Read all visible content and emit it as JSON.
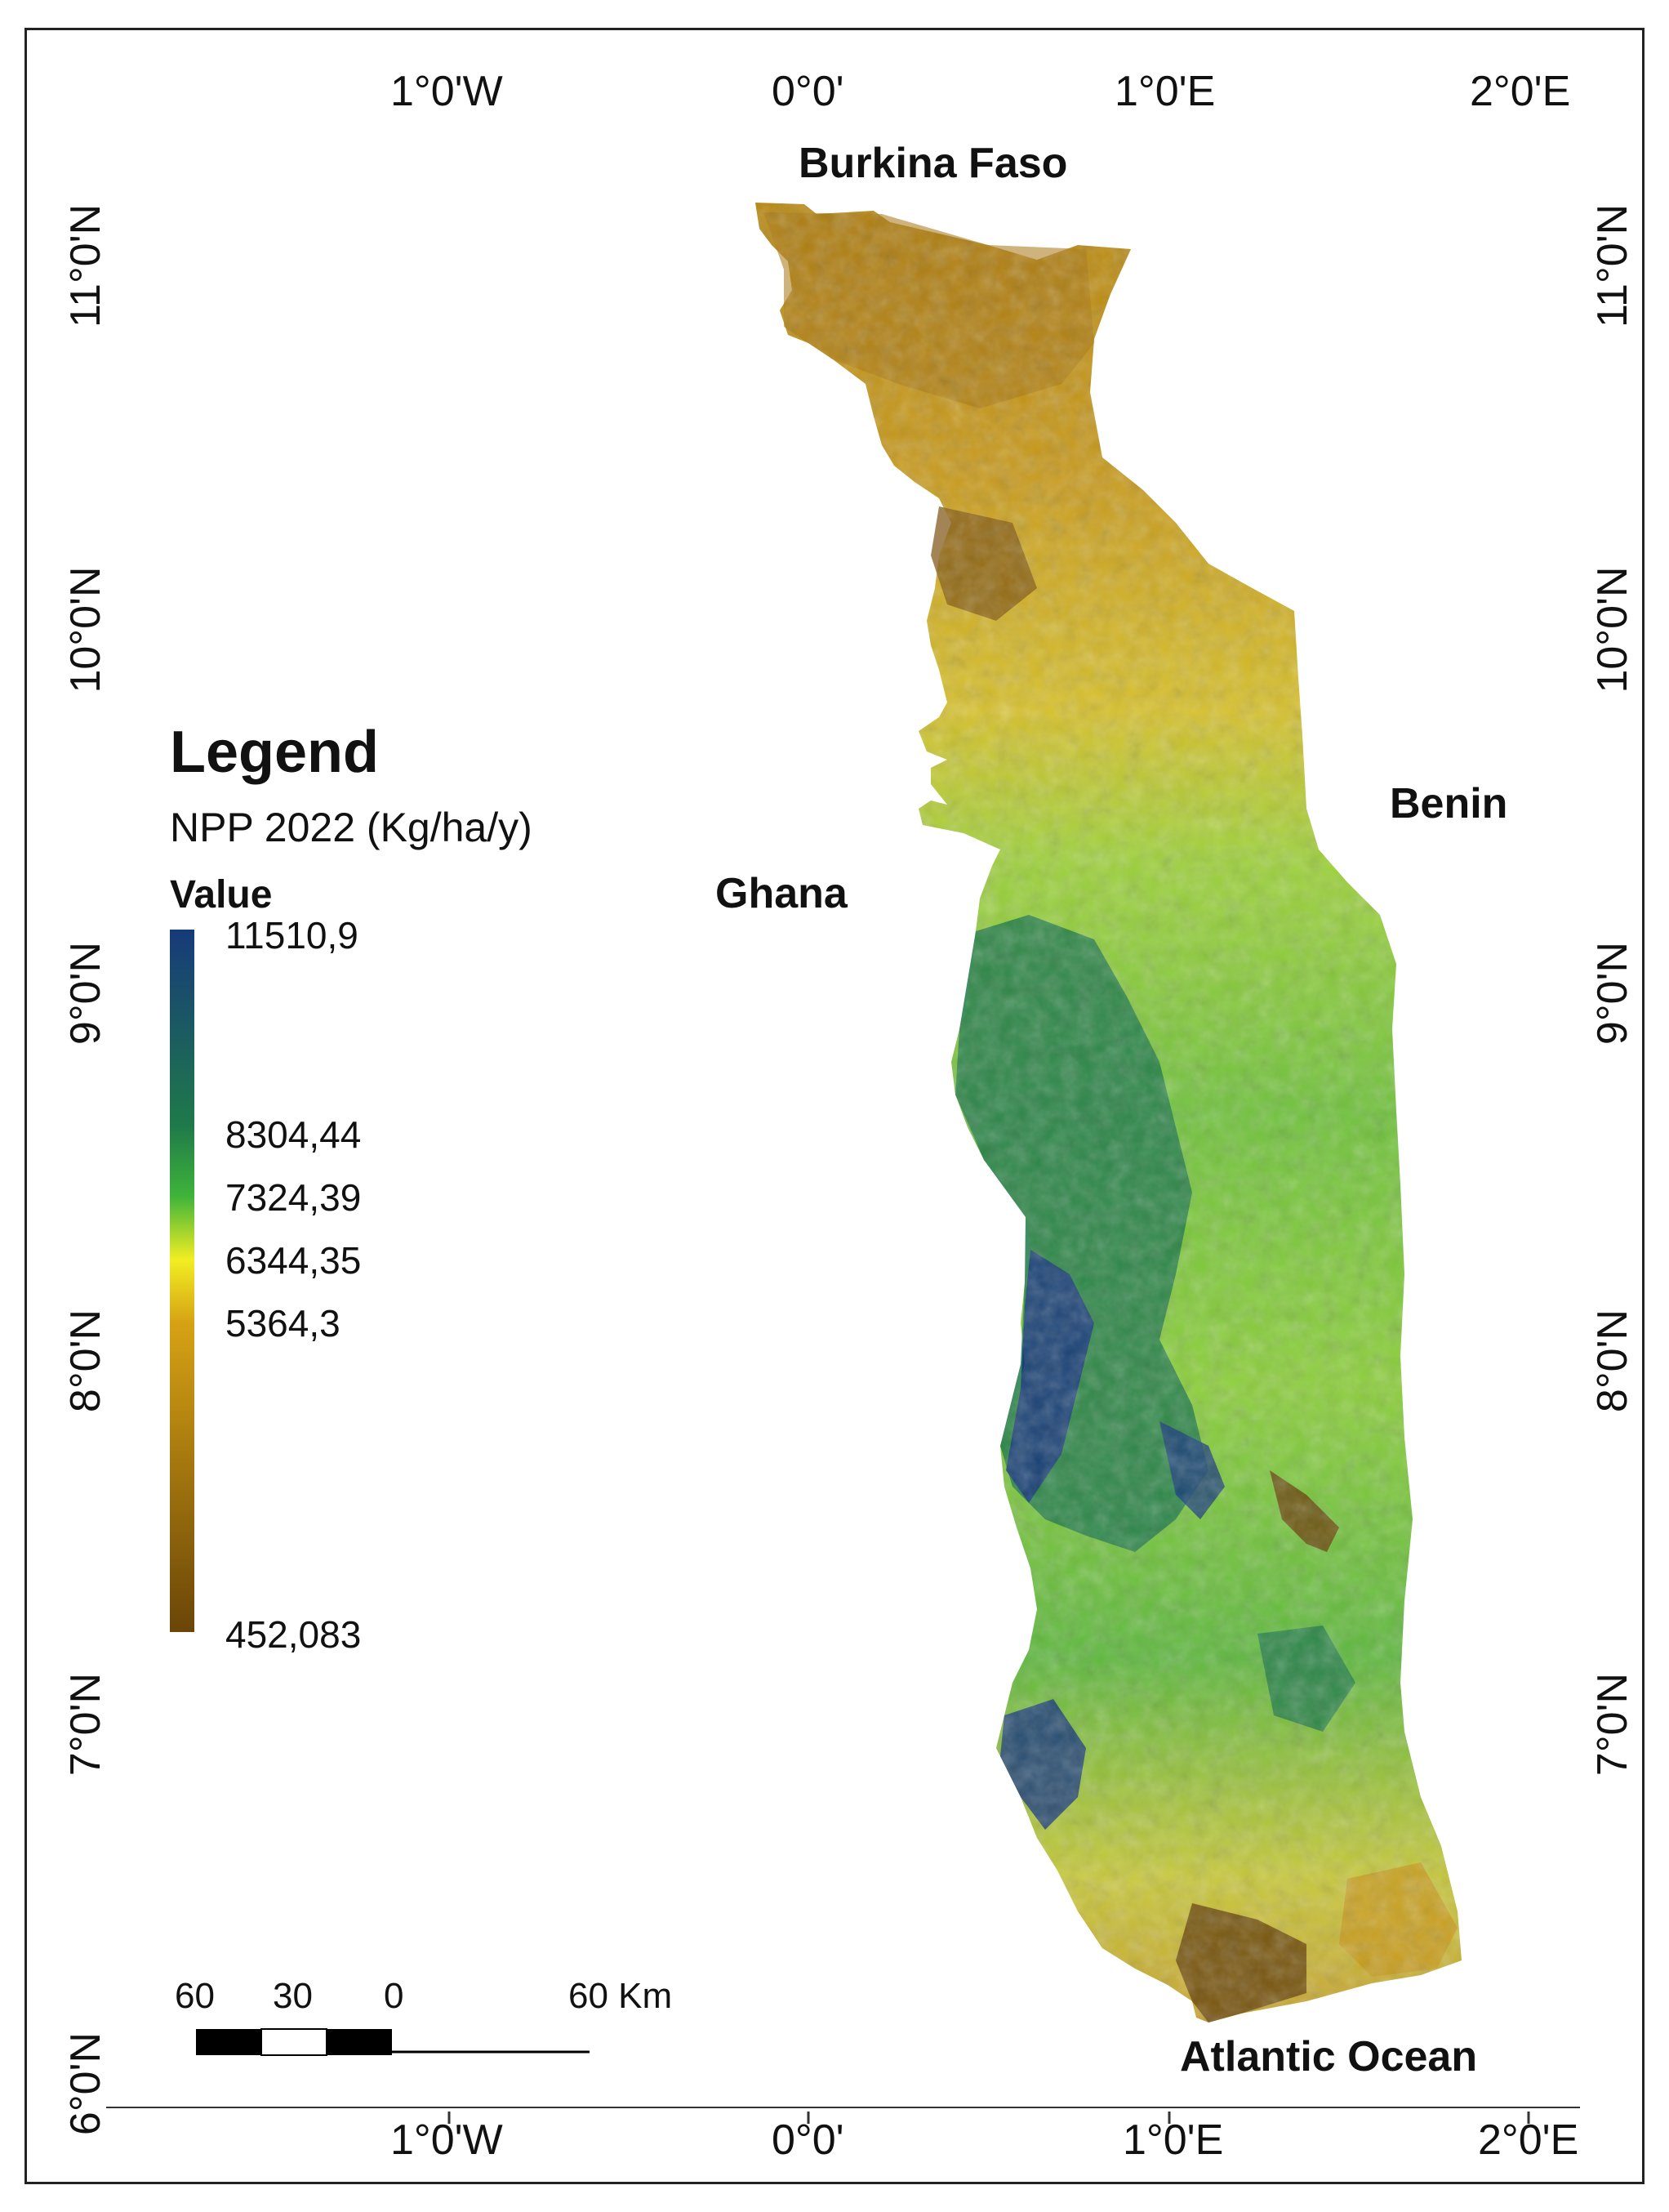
{
  "graticule": {
    "top_lon_labels": [
      "1°0'W",
      "0°0'",
      "1°0'E",
      "2°0'E"
    ],
    "bottom_lon_labels": [
      "1°0'W",
      "0°0'",
      "1°0'E",
      "2°0'E"
    ],
    "left_lat_labels": [
      "11°0'N",
      "10°0'N",
      "9°0'N",
      "8°0'N",
      "7°0'N",
      "6°0'N"
    ],
    "right_lat_labels": [
      "11°0'N",
      "10°0'N",
      "9°0'N",
      "8°0'N",
      "7°0'N"
    ]
  },
  "places": {
    "north": "Burkina Faso",
    "east": "Benin",
    "west": "Ghana",
    "south": "Atlantic Ocean"
  },
  "legend": {
    "title": "Legend",
    "layer": "NPP 2022 (Kg/ha/y)",
    "field": "Value",
    "labels": [
      "11510,9",
      "8304,44",
      "7324,39",
      "6344,35",
      "5364,3",
      "452,083"
    ],
    "ramp_colors": [
      "#173a7a",
      "#1f7a4a",
      "#3fb43a",
      "#f2ee22",
      "#d6a214",
      "#6a4508"
    ]
  },
  "scale_bar": {
    "labels": [
      "60",
      "30",
      "0",
      "60 Km"
    ]
  },
  "colors": {
    "high": "#173a7a",
    "mid_green": "#3fb43a",
    "yellow": "#f2ee22",
    "orange": "#d6a214",
    "low": "#6a4508"
  }
}
